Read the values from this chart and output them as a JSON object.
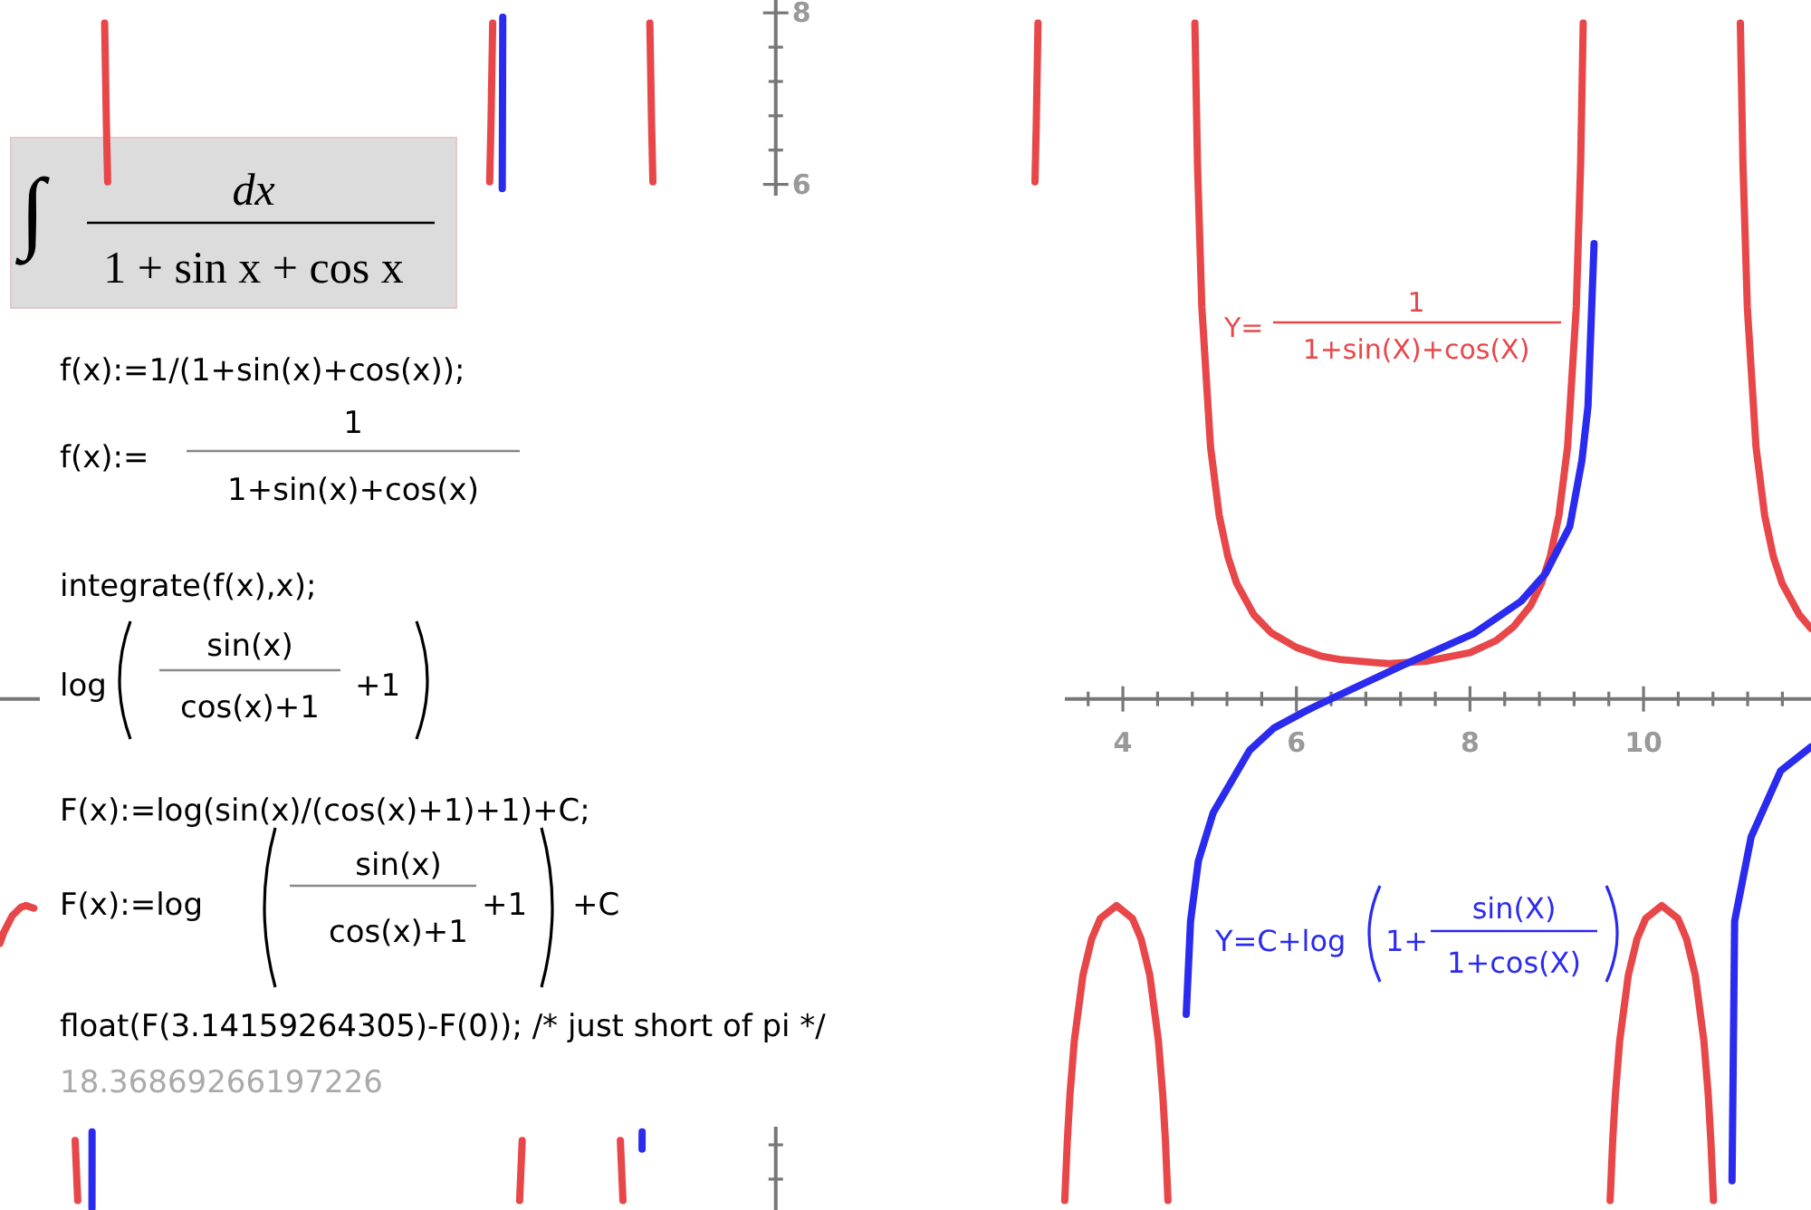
{
  "chart_data": {
    "type": "line",
    "xlim": [
      -8.94,
      11.93
    ],
    "ylim": [
      -5.96,
      8.15
    ],
    "xticks": [
      {
        "value": 3.6,
        "label": null
      },
      4,
      {
        "value": 4.4,
        "label": null
      },
      {
        "value": 4.8,
        "label": null
      },
      {
        "value": 5.2,
        "label": null
      },
      {
        "value": 5.6,
        "label": null
      },
      6,
      {
        "value": 6.4,
        "label": null
      },
      {
        "value": 6.8,
        "label": null
      },
      {
        "value": 7.2,
        "label": null
      },
      {
        "value": 7.6,
        "label": null
      },
      8,
      {
        "value": 8.4,
        "label": null
      },
      {
        "value": 8.8,
        "label": null
      },
      {
        "value": 9.2,
        "label": null
      },
      {
        "value": 9.6,
        "label": null
      },
      10,
      {
        "value": 10.4,
        "label": null
      },
      {
        "value": 10.8,
        "label": null
      },
      {
        "value": 11.2,
        "label": null
      },
      {
        "value": 11.6,
        "label": null
      }
    ],
    "yticks": [
      {
        "value": -5.6,
        "label": null
      },
      {
        "value": -5.2,
        "label": null
      },
      6,
      {
        "value": 6.4,
        "label": null
      },
      {
        "value": 6.8,
        "label": null
      },
      {
        "value": 7.2,
        "label": null
      },
      {
        "value": 7.6,
        "label": null
      },
      8
    ],
    "series": [
      {
        "color": "#e8474a",
        "x": [
          -8.94,
          -8.9,
          -8.8,
          -8.7,
          -8.64,
          -8.55,
          -8.3,
          -8.074,
          -8.044,
          -7.9,
          -7.734,
          -7.714,
          -7.699,
          -5,
          -3.297,
          -3.282,
          -3.262,
          -3.1,
          -2.952,
          -2.922,
          -2.3,
          -1.791,
          -1.761,
          -1.6,
          -1.451,
          -1.431,
          -1.416,
          1,
          2.987,
          3.002,
          3.022,
          3.2,
          3.33,
          3.36,
          3.39,
          3.44,
          3.54,
          3.64,
          3.74,
          3.927,
          4.11,
          4.21,
          4.31,
          4.41,
          4.46,
          4.49,
          4.52,
          4.7,
          4.83,
          4.86,
          4.91,
          5.01,
          5.11,
          5.21,
          5.31,
          5.51,
          5.71,
          6.0,
          6.28,
          6.5,
          7.07,
          7.5,
          8.0,
          8.3,
          8.5,
          8.7,
          8.825,
          8.925,
          9.025,
          9.125,
          9.225,
          9.275,
          9.305,
          9.5,
          9.615,
          9.645,
          9.675,
          9.725,
          9.825,
          9.925,
          10.025,
          10.21,
          10.396,
          10.496,
          10.596,
          10.696,
          10.746,
          10.776,
          10.806,
          11.0,
          11.116,
          11.146,
          11.196,
          11.296,
          11.396,
          11.496,
          11.596,
          11.796,
          11.93
        ],
        "values": [
          -2.85,
          -2.73,
          -2.53,
          -2.43,
          -2.41,
          -2.44,
          null,
          -5.15,
          -5.85,
          null,
          7.88,
          6.7,
          6.03,
          null,
          6.03,
          6.7,
          7.88,
          null,
          -5.85,
          -5.15,
          null,
          -5.15,
          -5.85,
          null,
          7.88,
          6.7,
          6.03,
          null,
          6.03,
          6.7,
          7.88,
          null,
          -5.85,
          -5.15,
          -4.62,
          -3.99,
          -3.22,
          -2.8,
          -2.56,
          -2.41,
          -2.56,
          -2.8,
          -3.22,
          -3.99,
          -4.62,
          -5.15,
          -5.85,
          null,
          7.88,
          6.23,
          4.57,
          2.94,
          2.14,
          1.66,
          1.35,
          0.98,
          0.77,
          0.6,
          0.5,
          0.46,
          0.41,
          0.44,
          0.54,
          0.68,
          0.84,
          1.09,
          1.35,
          1.66,
          2.14,
          2.94,
          4.57,
          6.23,
          7.88,
          null,
          -5.85,
          -5.15,
          -4.62,
          -3.99,
          -3.22,
          -2.8,
          -2.56,
          -2.41,
          -2.56,
          -2.8,
          -3.22,
          -3.99,
          -4.62,
          -5.15,
          -5.85,
          null,
          7.88,
          6.23,
          4.57,
          2.94,
          2.14,
          1.66,
          1.35,
          0.98,
          0.82
        ]
      },
      {
        "color": "#2b2bf0",
        "x": [
          -7.88,
          -7.879,
          -5,
          -3.152,
          -3.146,
          -2,
          -1.541,
          -1.54,
          2,
          4.73,
          4.78,
          4.87,
          5.04,
          5.46,
          5.74,
          6.09,
          6.23,
          7.2,
          8.04,
          8.59,
          8.87,
          9.15,
          9.29,
          9.36,
          9.43,
          10,
          11.02,
          11.05,
          11.24,
          11.58,
          11.93
        ],
        "values": [
          -5.94,
          -5.05,
          null,
          5.95,
          7.95,
          null,
          -5.25,
          -5.05,
          null,
          -3.68,
          -2.59,
          -1.89,
          -1.33,
          -0.6,
          -0.34,
          -0.15,
          -0.08,
          0.38,
          0.76,
          1.14,
          1.46,
          2.01,
          2.78,
          3.41,
          5.31,
          null,
          -5.62,
          -2.59,
          -1.61,
          -0.84,
          -0.56
        ]
      }
    ],
    "annotations": [
      "∫",
      "dx",
      "1 + sin x + cos x",
      "f(x):=1/(1+sin(x)+cos(x));",
      "f(x):=",
      "1",
      "1+sin(x)+cos(x)",
      "integrate(f(x),x);",
      "log",
      "sin(x)",
      "cos(x)+1",
      "+1",
      "F(x):=log(sin(x)/(cos(x)+1)+1)+C;",
      "F(x):=log",
      "sin(x)",
      "cos(x)+1",
      "+1",
      "+C",
      "float(F(3.14159264305)-F(0)); /* just short of pi */",
      "18.36869266197226",
      "Y=",
      "1",
      "1+sin(X)+cos(X)",
      "Y=C+log",
      "1+",
      "sin(X)",
      "1+cos(X)"
    ]
  }
}
